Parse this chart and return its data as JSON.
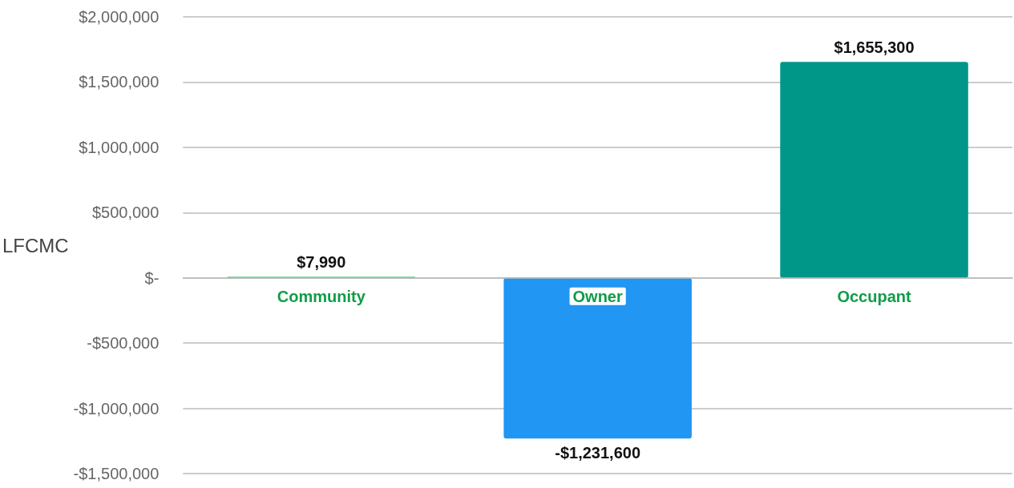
{
  "chart_data": {
    "type": "bar",
    "ylabel": "LFCMC",
    "categories": [
      "Community",
      "Owner",
      "Occupant"
    ],
    "values": [
      7990,
      -1231600,
      1655300
    ],
    "colors": [
      "#1db954",
      "#2196f3",
      "#009688"
    ],
    "value_labels": [
      "$7,990",
      "-$1,231,600",
      "$1,655,300"
    ],
    "ylim": [
      -1500000,
      2000000
    ],
    "yticks": [
      {
        "value": -1500000,
        "label": "-$1,500,000"
      },
      {
        "value": -1000000,
        "label": "-$1,000,000"
      },
      {
        "value": -500000,
        "label": "-$500,000"
      },
      {
        "value": 0,
        "label": "$-"
      },
      {
        "value": 500000,
        "label": "$500,000"
      },
      {
        "value": 1000000,
        "label": "$1,000,000"
      },
      {
        "value": 1500000,
        "label": "$1,500,000"
      },
      {
        "value": 2000000,
        "label": "$2,000,000"
      }
    ],
    "grid": "y"
  }
}
